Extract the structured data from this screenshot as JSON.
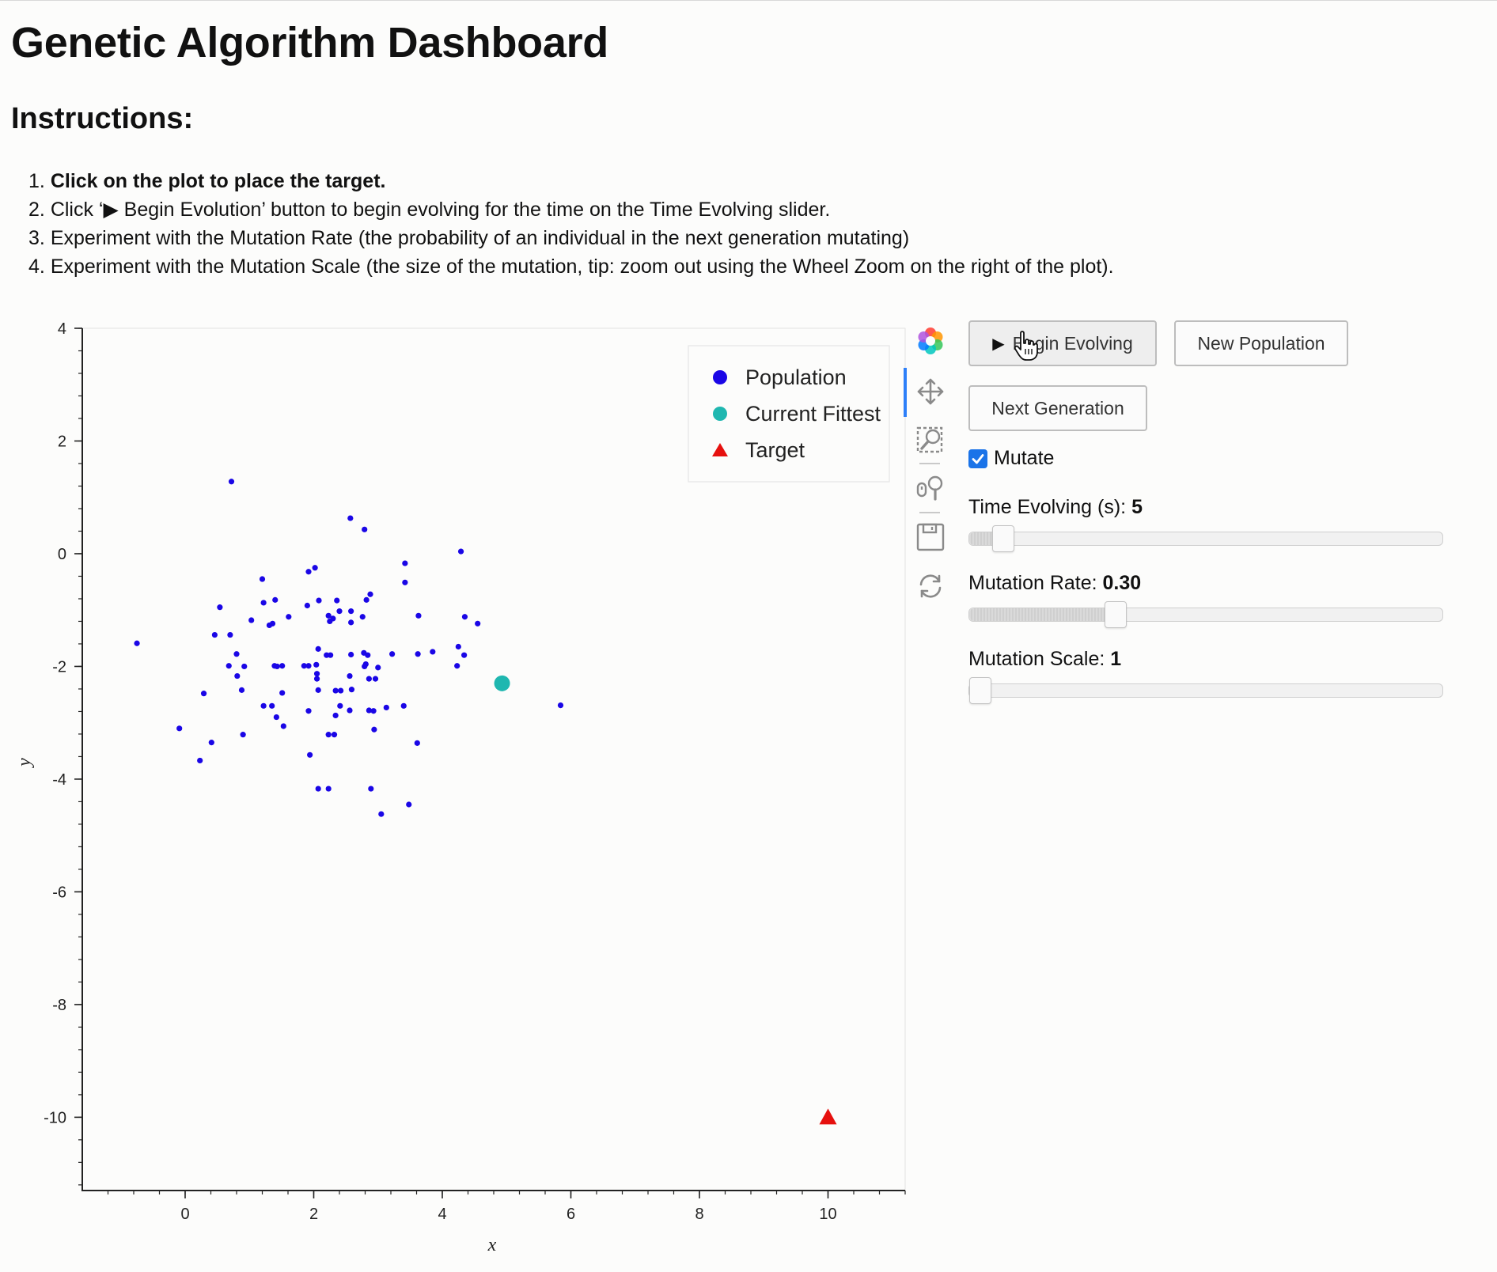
{
  "page": {
    "title": "Genetic Algorithm Dashboard",
    "instructions_heading": "Instructions:"
  },
  "instructions": [
    {
      "num": "1.",
      "text": "Click on the plot to place the target.",
      "bold": true
    },
    {
      "num": "2.",
      "text": "Click ‘▶ Begin Evolution’ button to begin evolving for the time on the Time Evolving slider.",
      "bold": false
    },
    {
      "num": "3.",
      "text": "Experiment with the Mutation Rate (the probability of an individual in the next generation mutating)",
      "bold": false
    },
    {
      "num": "4.",
      "text": "Experiment with the Mutation Scale (the size of the mutation, tip: zoom out using the Wheel Zoom on the right of the plot).",
      "bold": false
    }
  ],
  "controls": {
    "begin_button": {
      "icon": "play-icon",
      "label": "Begin Evolving"
    },
    "new_population_button": "New Population",
    "next_generation_button": "Next Generation",
    "mutate_checkbox": {
      "label": "Mutate",
      "checked": true
    },
    "time_slider": {
      "label": "Time Evolving (s): ",
      "value_text": "5",
      "min": 0,
      "max": 100,
      "value": 5
    },
    "rate_slider": {
      "label": "Mutation Rate: ",
      "value_text": "0.30",
      "min": 0,
      "max": 1,
      "value": 0.3
    },
    "scale_slider": {
      "label": "Mutation Scale: ",
      "value_text": "1",
      "min": 1,
      "max": 100,
      "value": 1
    }
  },
  "toolbar": {
    "tools": [
      "bokeh-logo-icon",
      "pan-icon",
      "box-zoom-icon",
      "wheel-zoom-icon",
      "save-icon",
      "reset-icon"
    ],
    "active": "pan-icon"
  },
  "colors": {
    "population": "#1a06e6",
    "fittest": "#1fb7b0",
    "target": "#e6100e",
    "accent": "#1a73e8"
  },
  "chart_data": {
    "type": "scatter",
    "xlabel": "x",
    "ylabel": "y",
    "xlim": [
      -1.6,
      11.2
    ],
    "ylim": [
      -11.3,
      4.0
    ],
    "x_ticks": [
      0,
      2,
      4,
      6,
      8,
      10
    ],
    "y_ticks": [
      4,
      2,
      0,
      -2,
      -4,
      -6,
      -8,
      -10
    ],
    "legend": {
      "position": "top-right",
      "entries": [
        "Population",
        "Current Fittest",
        "Target"
      ]
    },
    "series": [
      {
        "name": "Population",
        "marker": "circle",
        "points": [
          [
            0.72,
            1.28
          ],
          [
            2.57,
            0.63
          ],
          [
            2.79,
            0.43
          ],
          [
            4.29,
            0.04
          ],
          [
            3.42,
            -0.17
          ],
          [
            2.02,
            -0.25
          ],
          [
            1.92,
            -0.32
          ],
          [
            3.42,
            -0.51
          ],
          [
            1.2,
            -0.45
          ],
          [
            2.88,
            -0.72
          ],
          [
            2.82,
            -0.82
          ],
          [
            1.4,
            -0.82
          ],
          [
            2.08,
            -0.83
          ],
          [
            2.36,
            -0.83
          ],
          [
            1.22,
            -0.87
          ],
          [
            0.54,
            -0.95
          ],
          [
            1.9,
            -0.92
          ],
          [
            2.4,
            -1.02
          ],
          [
            2.58,
            -1.02
          ],
          [
            3.63,
            -1.1
          ],
          [
            2.23,
            -1.1
          ],
          [
            2.3,
            -1.15
          ],
          [
            1.61,
            -1.12
          ],
          [
            2.76,
            -1.12
          ],
          [
            4.35,
            -1.12
          ],
          [
            1.03,
            -1.18
          ],
          [
            2.25,
            -1.2
          ],
          [
            2.58,
            -1.22
          ],
          [
            1.36,
            -1.24
          ],
          [
            1.31,
            -1.27
          ],
          [
            4.55,
            -1.24
          ],
          [
            0.46,
            -1.44
          ],
          [
            0.7,
            -1.44
          ],
          [
            -0.75,
            -1.59
          ],
          [
            4.25,
            -1.65
          ],
          [
            2.07,
            -1.69
          ],
          [
            0.8,
            -1.78
          ],
          [
            1.39,
            -1.99
          ],
          [
            1.92,
            -1.99
          ],
          [
            2.2,
            -1.8
          ],
          [
            2.26,
            -1.8
          ],
          [
            2.78,
            -1.76
          ],
          [
            2.84,
            -1.8
          ],
          [
            3.22,
            -1.78
          ],
          [
            3.62,
            -1.78
          ],
          [
            3.85,
            -1.74
          ],
          [
            4.34,
            -1.8
          ],
          [
            2.58,
            -1.79
          ],
          [
            0.68,
            -1.99
          ],
          [
            1.51,
            -1.99
          ],
          [
            1.85,
            -1.99
          ],
          [
            2.04,
            -1.97
          ],
          [
            2.81,
            -1.96
          ],
          [
            3.0,
            -2.02
          ],
          [
            4.23,
            -1.99
          ],
          [
            0.92,
            -2.0
          ],
          [
            1.43,
            -2.0
          ],
          [
            2.79,
            -2.0
          ],
          [
            0.81,
            -2.17
          ],
          [
            2.05,
            -2.13
          ],
          [
            2.56,
            -2.17
          ],
          [
            2.05,
            -2.22
          ],
          [
            2.86,
            -2.22
          ],
          [
            2.96,
            -2.22
          ],
          [
            0.29,
            -2.48
          ],
          [
            0.88,
            -2.42
          ],
          [
            1.51,
            -2.47
          ],
          [
            2.07,
            -2.42
          ],
          [
            2.34,
            -2.43
          ],
          [
            2.42,
            -2.43
          ],
          [
            2.59,
            -2.41
          ],
          [
            1.22,
            -2.7
          ],
          [
            1.35,
            -2.7
          ],
          [
            2.41,
            -2.7
          ],
          [
            3.13,
            -2.73
          ],
          [
            3.4,
            -2.7
          ],
          [
            1.92,
            -2.79
          ],
          [
            2.56,
            -2.78
          ],
          [
            2.86,
            -2.78
          ],
          [
            2.93,
            -2.79
          ],
          [
            1.42,
            -2.9
          ],
          [
            2.34,
            -2.87
          ],
          [
            1.53,
            -3.06
          ],
          [
            2.94,
            -3.12
          ],
          [
            -0.09,
            -3.1
          ],
          [
            0.9,
            -3.21
          ],
          [
            2.23,
            -3.21
          ],
          [
            2.32,
            -3.21
          ],
          [
            0.41,
            -3.35
          ],
          [
            3.61,
            -3.36
          ],
          [
            0.23,
            -3.67
          ],
          [
            1.94,
            -3.57
          ],
          [
            2.07,
            -4.17
          ],
          [
            2.23,
            -4.17
          ],
          [
            2.89,
            -4.17
          ],
          [
            3.48,
            -4.45
          ],
          [
            3.05,
            -4.62
          ],
          [
            5.84,
            -2.69
          ]
        ]
      },
      {
        "name": "Current Fittest",
        "marker": "circle",
        "points": [
          [
            4.93,
            -2.3
          ]
        ]
      },
      {
        "name": "Target",
        "marker": "triangle",
        "points": [
          [
            10.0,
            -10.0
          ]
        ]
      }
    ]
  }
}
